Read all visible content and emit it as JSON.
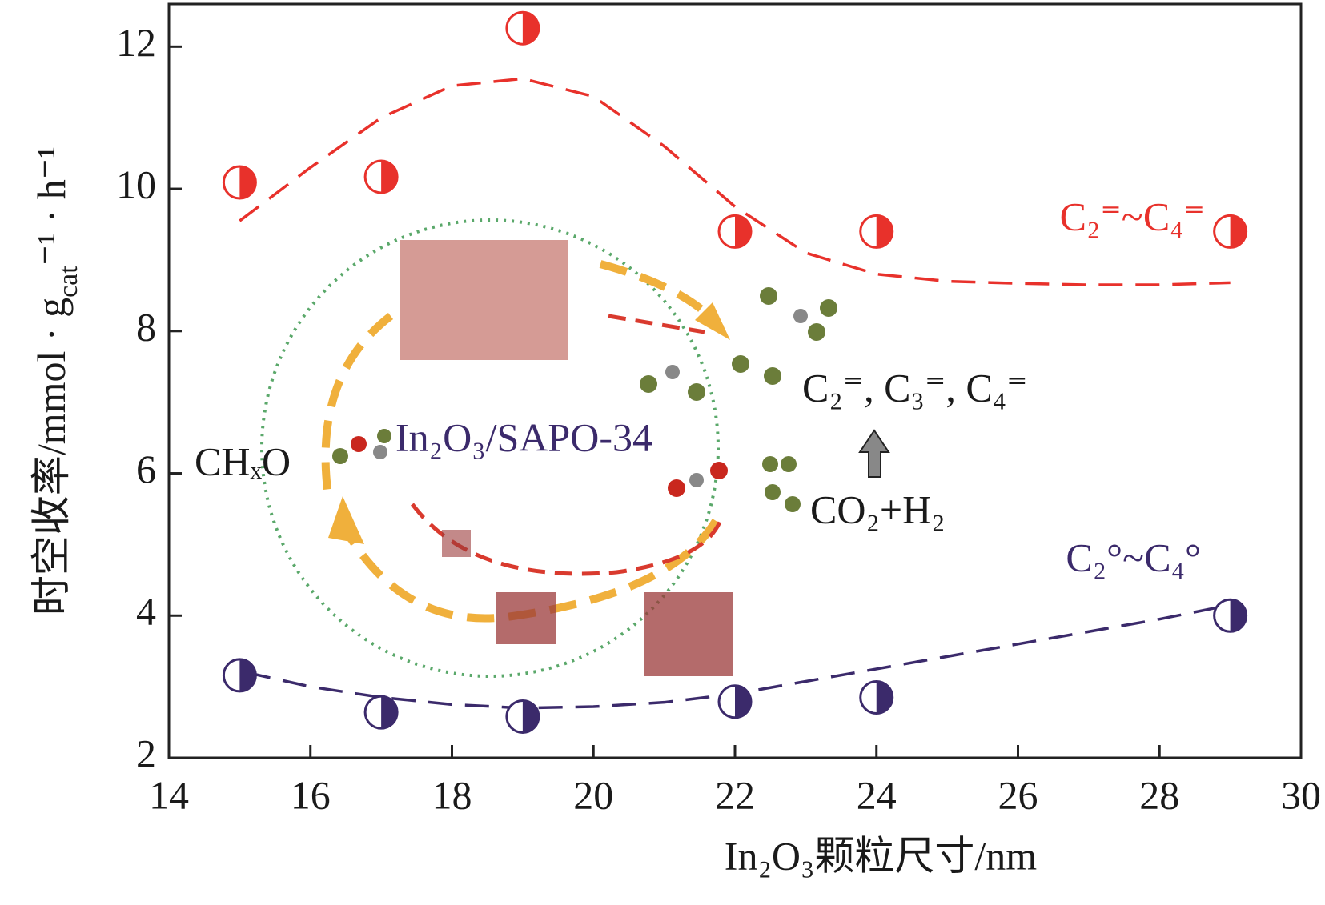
{
  "chart_data": {
    "type": "scatter",
    "xlabel": "In₂O₃颗粒尺寸/nm",
    "ylabel": [
      "时空收率/mmol · g",
      "cat",
      "⁻¹ · h⁻¹"
    ],
    "xlim": [
      14,
      30
    ],
    "xticks": [
      14,
      16,
      18,
      20,
      22,
      24,
      26,
      28,
      30
    ],
    "ylim": [
      2,
      12.6
    ],
    "yticks": [
      2,
      4,
      6,
      8,
      10,
      12
    ],
    "series": [
      {
        "name": "C₂⁼~C₄⁼",
        "color": "#e8312b",
        "x": [
          15,
          17,
          19,
          22,
          24,
          29
        ],
        "values": [
          10.09,
          10.17,
          12.26,
          9.4,
          9.4,
          9.4
        ],
        "fit_x": [
          15,
          16,
          17,
          18,
          19,
          20,
          21,
          22,
          23,
          24,
          25,
          26,
          27,
          28,
          29
        ],
        "fit_values": [
          9.55,
          10.3,
          11.0,
          11.45,
          11.55,
          11.3,
          10.6,
          9.75,
          9.1,
          8.8,
          8.7,
          8.67,
          8.65,
          8.65,
          8.68
        ]
      },
      {
        "name": "C₂°~C₄°",
        "color": "#3b2a6b",
        "x": [
          15,
          17,
          19,
          22,
          24,
          29
        ],
        "values": [
          3.16,
          2.64,
          2.58,
          2.79,
          2.85,
          4.0
        ],
        "fit_x": [
          15.1,
          16,
          17,
          18,
          19,
          20,
          21,
          22,
          24,
          26,
          28,
          29
        ],
        "fit_values": [
          3.2,
          3.0,
          2.85,
          2.75,
          2.7,
          2.72,
          2.78,
          2.9,
          3.25,
          3.6,
          3.95,
          4.15
        ]
      }
    ],
    "annotations": [
      "CHₓO",
      "In₂O₃/SAPO-34",
      "C₂⁼,  C₃⁼,  C₄⁼",
      "CO₂+H₂"
    ]
  }
}
